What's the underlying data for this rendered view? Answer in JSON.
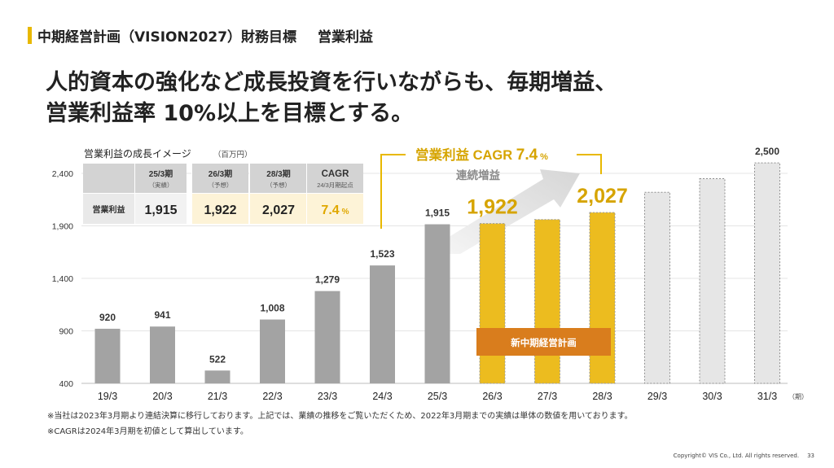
{
  "header": {
    "title": "中期経営計画（VISION2027）財務目標",
    "subtitle": "営業利益"
  },
  "headline": {
    "line1": "人的資本の強化など成長投資を行いながらも、毎期増益、",
    "line2": "営業利益率 10%以上を目標とする。"
  },
  "colors": {
    "accent": "#e8b800",
    "bar_actual": "#a3a3a3",
    "bar_plan": "#ecbc1f",
    "bar_future": "#e6e6e6",
    "plan_banner": "#d97d1d",
    "cagr_text": "#d6a400"
  },
  "chart_data": {
    "type": "bar",
    "title": "営業利益の成長イメージ",
    "unit": "（百万円）",
    "x_suffix": "（期）",
    "categories": [
      "19/3",
      "20/3",
      "21/3",
      "22/3",
      "23/3",
      "24/3",
      "25/3",
      "26/3",
      "27/3",
      "28/3",
      "29/3",
      "30/3",
      "31/3"
    ],
    "values": [
      920,
      941,
      522,
      1008,
      1279,
      1523,
      1915,
      1922,
      1960,
      2027,
      2220,
      2350,
      2500
    ],
    "bar_kinds": [
      "actual",
      "actual",
      "actual",
      "actual",
      "actual",
      "actual",
      "actual",
      "plan",
      "plan",
      "plan",
      "future",
      "future",
      "future"
    ],
    "data_labels": [
      "920",
      "941",
      "522",
      "1,008",
      "1,279",
      "1,523",
      "1,915",
      "1,922",
      "",
      "2,027",
      "",
      "",
      "2,500"
    ],
    "yticks": [
      400,
      900,
      1400,
      1900,
      2400
    ],
    "ytick_labels": [
      "400",
      "900",
      "1,400",
      "1,900",
      "2,400"
    ],
    "ylim": [
      400,
      2600
    ],
    "grid": true,
    "annotations": {
      "cagr_label": "営業利益 CAGR",
      "cagr_value": "7.4",
      "cagr_unit": "%",
      "consolidated_label": "連続増益",
      "plan_banner": "新中期経営計画"
    }
  },
  "table": {
    "headers": [
      {
        "main": "25/3期",
        "sub": "（実績）"
      },
      {
        "main": "26/3期",
        "sub": "（予想）"
      },
      {
        "main": "28/3期",
        "sub": "（予想）"
      },
      {
        "main": "CAGR",
        "sub": "24/3月期起点"
      }
    ],
    "row_label": "営業利益",
    "row_values": [
      "1,915",
      "1,922",
      "2,027",
      "7.4"
    ],
    "cagr_unit": "%"
  },
  "notes": [
    "※当社は2023年3月期より連結決算に移行しております。上記では、業績の推移をご覧いただくため、2022年3月期までの実績は単体の数値を用いております。",
    "※CAGRは2024年3月期を初値として算出しています。"
  ],
  "footer": {
    "copyright": "Copyright© VIS Co., Ltd. All rights reserved.",
    "page": "33"
  }
}
